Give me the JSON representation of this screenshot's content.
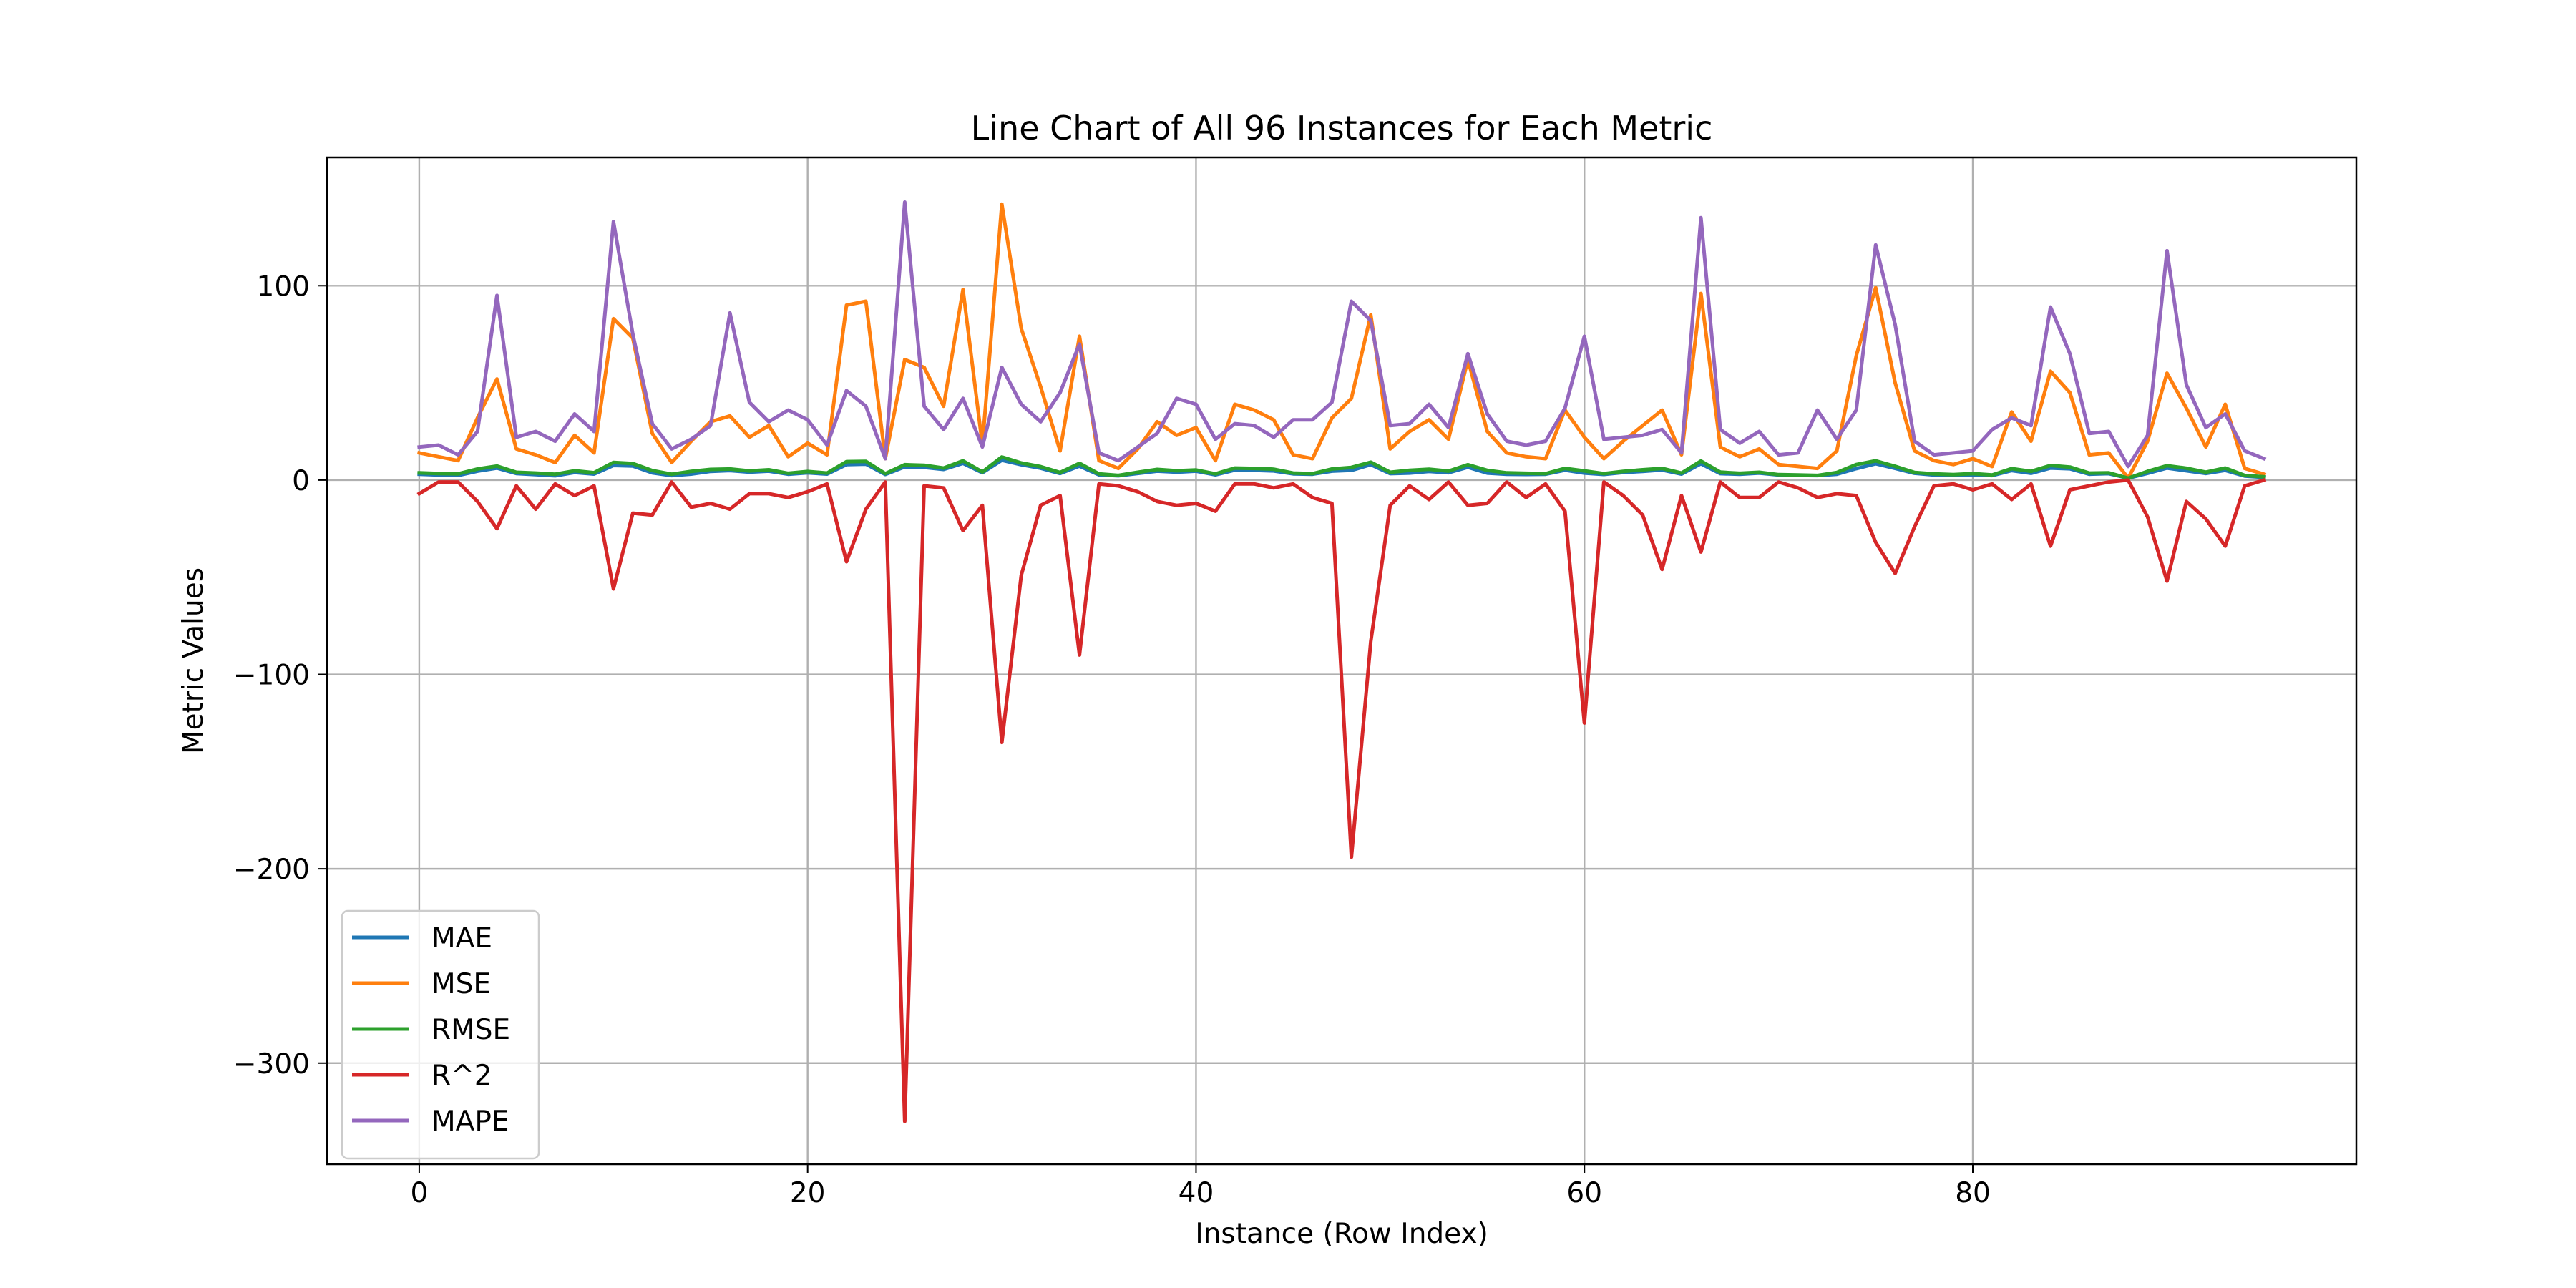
{
  "chart_data": {
    "type": "line",
    "title": "Line Chart of All 96 Instances for Each Metric",
    "xlabel": "Instance (Row Index)",
    "ylabel": "Metric Values",
    "xlim": [
      -4.75,
      99.75
    ],
    "ylim": [
      -352,
      166
    ],
    "xticks": [
      0,
      20,
      40,
      60,
      80
    ],
    "yticks": [
      100,
      0,
      -100,
      -200,
      -300
    ],
    "ytick_labels": [
      "100",
      "0",
      "−100",
      "−200",
      "−300"
    ],
    "grid": true,
    "legend": "lower-left",
    "series": [
      {
        "name": "MAE",
        "color": "#1f77b4",
        "values": [
          3.0,
          2.6,
          2.4,
          4.6,
          6.2,
          3.4,
          2.8,
          2.2,
          3.9,
          3.1,
          7.5,
          7.2,
          3.7,
          2.3,
          3.1,
          4.5,
          4.9,
          4.1,
          4.6,
          3.0,
          3.7,
          3.1,
          8.0,
          8.2,
          2.9,
          6.8,
          6.5,
          5.5,
          8.6,
          3.8,
          10.2,
          7.9,
          6.1,
          3.4,
          7.2,
          2.7,
          2.2,
          3.4,
          4.6,
          4.1,
          4.6,
          2.7,
          5.1,
          5.0,
          4.7,
          3.2,
          3.0,
          4.6,
          5.0,
          7.9,
          3.3,
          3.6,
          4.5,
          3.8,
          6.6,
          3.6,
          3.0,
          2.9,
          3.0,
          5.1,
          3.6,
          2.9,
          3.9,
          4.5,
          5.2,
          3.1,
          8.4,
          3.3,
          3.0,
          3.6,
          2.6,
          2.4,
          2.3,
          3.0,
          5.9,
          8.4,
          6.0,
          3.5,
          2.6,
          2.4,
          2.7,
          2.3,
          4.9,
          3.5,
          6.2,
          5.8,
          3.0,
          3.3,
          1.0,
          3.5,
          6.2,
          4.8,
          3.4,
          5.0,
          2.1,
          1.4
        ]
      },
      {
        "name": "MSE",
        "color": "#ff7f0e",
        "values": [
          14,
          12,
          10,
          32,
          52,
          16,
          13,
          9,
          23,
          14,
          83,
          73,
          24,
          9,
          20,
          30,
          33,
          22,
          28,
          12,
          19,
          13,
          90,
          92,
          11,
          62,
          58,
          38,
          98,
          18,
          142,
          78,
          48,
          15,
          74,
          10,
          6,
          16,
          30,
          23,
          27,
          10,
          39,
          36,
          31,
          13,
          11,
          32,
          42,
          85,
          16,
          25,
          31,
          21,
          62,
          25,
          14,
          12,
          11,
          36,
          22,
          11,
          20,
          28,
          36,
          13,
          96,
          17,
          12,
          16,
          8,
          7,
          6,
          15,
          64,
          99,
          50,
          15,
          10,
          8,
          11,
          7,
          35,
          20,
          56,
          45,
          13,
          14,
          1,
          20,
          55,
          37,
          17,
          39,
          6,
          3
        ]
      },
      {
        "name": "RMSE",
        "color": "#2ca02c",
        "values": [
          3.7,
          3.4,
          3.2,
          5.7,
          7.2,
          4.0,
          3.6,
          3.0,
          4.8,
          3.8,
          9.1,
          8.5,
          4.9,
          3.0,
          4.5,
          5.5,
          5.7,
          4.7,
          5.3,
          3.5,
          4.4,
          3.6,
          9.5,
          9.6,
          3.3,
          7.9,
          7.6,
          6.2,
          9.9,
          4.2,
          11.9,
          8.8,
          6.9,
          3.9,
          8.6,
          3.2,
          2.4,
          4.0,
          5.5,
          4.8,
          5.2,
          3.2,
          6.2,
          6.0,
          5.6,
          3.6,
          3.3,
          5.7,
          6.5,
          9.2,
          4.0,
          5.0,
          5.6,
          4.6,
          7.9,
          5.0,
          3.7,
          3.5,
          3.3,
          6.0,
          4.7,
          3.3,
          4.5,
          5.3,
          6.0,
          3.6,
          9.8,
          4.1,
          3.5,
          4.0,
          2.8,
          2.6,
          2.4,
          3.9,
          8.0,
          9.9,
          7.1,
          3.9,
          3.2,
          2.8,
          3.3,
          2.6,
          5.9,
          4.5,
          7.5,
          6.7,
          3.6,
          3.7,
          1.0,
          4.5,
          7.4,
          6.1,
          4.1,
          6.2,
          2.4,
          1.7
        ]
      },
      {
        "name": "R^2",
        "color": "#d62728",
        "values": [
          -7,
          -1,
          -1,
          -11,
          -25,
          -3,
          -15,
          -2,
          -8,
          -3,
          -56,
          -17,
          -18,
          -1,
          -14,
          -12,
          -15,
          -7,
          -7,
          -9,
          -6,
          -2,
          -42,
          -15,
          -1,
          -330,
          -3,
          -4,
          -26,
          -13,
          -135,
          -49,
          -13,
          -8,
          -90,
          -2,
          -3,
          -6,
          -11,
          -13,
          -12,
          -16,
          -2,
          -2,
          -4,
          -2,
          -9,
          -12,
          -194,
          -83,
          -13,
          -3,
          -10,
          -1,
          -13,
          -12,
          -1,
          -9,
          -2,
          -16,
          -125,
          -1,
          -8,
          -18,
          -46,
          -8,
          -37,
          -1,
          -9,
          -9,
          -1,
          -4,
          -9,
          -7,
          -8,
          -32,
          -48,
          -24,
          -3,
          -2,
          -5,
          -2,
          -10,
          -2,
          -34,
          -5,
          -3,
          -1,
          0,
          -19,
          -52,
          -11,
          -20,
          -34,
          -3,
          0
        ]
      },
      {
        "name": "MAPE",
        "color": "#9467bd",
        "values": [
          17,
          18,
          13,
          25,
          95,
          22,
          25,
          20,
          34,
          25,
          133,
          75,
          29,
          16,
          21,
          28,
          86,
          40,
          30,
          36,
          31,
          18,
          46,
          38,
          11,
          143,
          38,
          26,
          42,
          17,
          58,
          39,
          30,
          45,
          70,
          14,
          10,
          17,
          24,
          42,
          39,
          21,
          29,
          28,
          22,
          31,
          31,
          40,
          92,
          82,
          28,
          29,
          39,
          27,
          65,
          34,
          20,
          18,
          20,
          37,
          74,
          21,
          22,
          23,
          26,
          14,
          135,
          26,
          19,
          25,
          13,
          14,
          36,
          21,
          36,
          121,
          80,
          20,
          13,
          14,
          15,
          26,
          32,
          28,
          89,
          65,
          24,
          25,
          7,
          23,
          118,
          49,
          27,
          34,
          15,
          11
        ]
      }
    ]
  }
}
